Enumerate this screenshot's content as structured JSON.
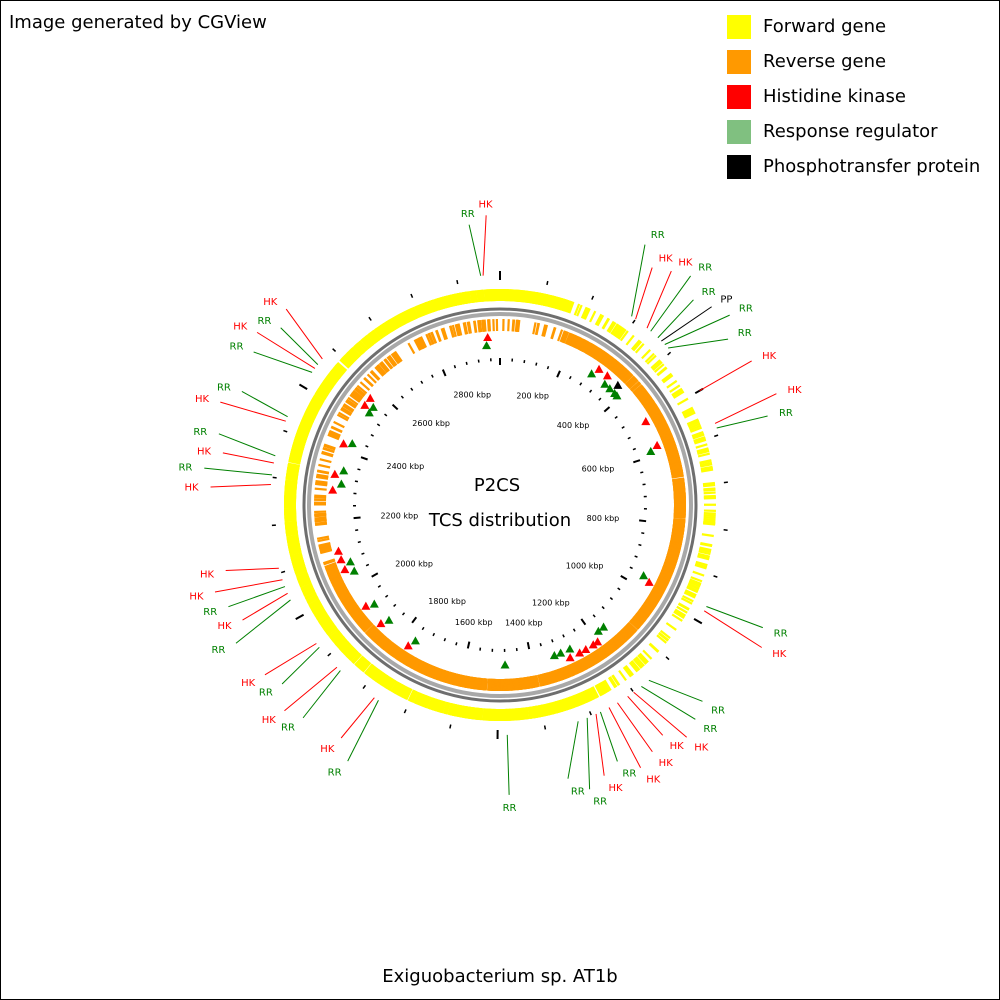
{
  "header": {
    "text": "Image generated by CGView"
  },
  "footer": {
    "organism": "Exiguobacterium sp. AT1b"
  },
  "center": {
    "title": "P2CS",
    "subtitle": "TCS distribution"
  },
  "legend": [
    {
      "label": "Forward gene",
      "color": "#ffff00"
    },
    {
      "label": "Reverse gene",
      "color": "#ff9900"
    },
    {
      "label": "Histidine kinase",
      "color": "#ff0000"
    },
    {
      "label": "Response regulator",
      "color": "#80c080"
    },
    {
      "label": "Phosphotransfer protein",
      "color": "#000000"
    }
  ],
  "colors": {
    "hk": "#ff0000",
    "rr": "#008000",
    "pp": "#000000",
    "backbone": "#808080"
  },
  "genome": {
    "length_kbp": 2990
  },
  "tick_labels": [
    {
      "kbp": 200,
      "text": "200 kbp"
    },
    {
      "kbp": 400,
      "text": "400 kbp"
    },
    {
      "kbp": 600,
      "text": "600 kbp"
    },
    {
      "kbp": 800,
      "text": "800 kbp"
    },
    {
      "kbp": 1000,
      "text": "1000 kbp"
    },
    {
      "kbp": 1200,
      "text": "1200 kbp"
    },
    {
      "kbp": 1400,
      "text": "1400 kbp"
    },
    {
      "kbp": 1600,
      "text": "1600 kbp"
    },
    {
      "kbp": 1800,
      "text": "1800 kbp"
    },
    {
      "kbp": 2000,
      "text": "2000 kbp"
    },
    {
      "kbp": 2200,
      "text": "2200 kbp"
    },
    {
      "kbp": 2400,
      "text": "2400 kbp"
    },
    {
      "kbp": 2600,
      "text": "2600 kbp"
    },
    {
      "kbp": 2800,
      "text": "2800 kbp"
    }
  ],
  "features": [
    {
      "label": "RR",
      "type": "rr",
      "kbp": 2950
    },
    {
      "label": "HK",
      "type": "hk",
      "kbp": 2955
    },
    {
      "label": "RR",
      "type": "rr",
      "kbp": 290
    },
    {
      "label": "HK",
      "type": "hk",
      "kbp": 300
    },
    {
      "label": "HK",
      "type": "hk",
      "kbp": 330
    },
    {
      "label": "RR",
      "type": "rr",
      "kbp": 340
    },
    {
      "label": "RR",
      "type": "rr",
      "kbp": 360
    },
    {
      "label": "PP",
      "type": "pp",
      "kbp": 370
    },
    {
      "label": "RR",
      "type": "rr",
      "kbp": 380
    },
    {
      "label": "RR",
      "type": "rr",
      "kbp": 390
    },
    {
      "label": "HK",
      "type": "hk",
      "kbp": 500
    },
    {
      "label": "HK",
      "type": "hk",
      "kbp": 575
    },
    {
      "label": "RR",
      "type": "rr",
      "kbp": 585
    },
    {
      "label": "RR",
      "type": "rr",
      "kbp": 965
    },
    {
      "label": "HK",
      "type": "hk",
      "kbp": 975
    },
    {
      "label": "RR",
      "type": "rr",
      "kbp": 1160
    },
    {
      "label": "RR",
      "type": "rr",
      "kbp": 1180
    },
    {
      "label": "HK",
      "type": "hk",
      "kbp": 1200
    },
    {
      "label": "HK",
      "type": "hk",
      "kbp": 1215
    },
    {
      "label": "HK",
      "type": "hk",
      "kbp": 1240
    },
    {
      "label": "HK",
      "type": "hk",
      "kbp": 1260
    },
    {
      "label": "RR",
      "type": "rr",
      "kbp": 1280
    },
    {
      "label": "HK",
      "type": "hk",
      "kbp": 1290
    },
    {
      "label": "RR",
      "type": "rr",
      "kbp": 1310
    },
    {
      "label": "RR",
      "type": "rr",
      "kbp": 1330
    },
    {
      "label": "RR",
      "type": "rr",
      "kbp": 1480
    },
    {
      "label": "RR",
      "type": "rr",
      "kbp": 1760
    },
    {
      "label": "HK",
      "type": "hk",
      "kbp": 1770
    },
    {
      "label": "RR",
      "type": "rr",
      "kbp": 1860
    },
    {
      "label": "HK",
      "type": "hk",
      "kbp": 1870
    },
    {
      "label": "RR",
      "type": "rr",
      "kbp": 1925
    },
    {
      "label": "HK",
      "type": "hk",
      "kbp": 1935
    },
    {
      "label": "RR",
      "type": "rr",
      "kbp": 2040
    },
    {
      "label": "HK",
      "type": "hk",
      "kbp": 2055
    },
    {
      "label": "RR",
      "type": "rr",
      "kbp": 2070
    },
    {
      "label": "HK",
      "type": "hk",
      "kbp": 2085
    },
    {
      "label": "HK",
      "type": "hk",
      "kbp": 2110
    },
    {
      "label": "HK",
      "type": "hk",
      "kbp": 2285
    },
    {
      "label": "RR",
      "type": "rr",
      "kbp": 2305
    },
    {
      "label": "HK",
      "type": "hk",
      "kbp": 2330
    },
    {
      "label": "RR",
      "type": "rr",
      "kbp": 2345
    },
    {
      "label": "HK",
      "type": "hk",
      "kbp": 2420
    },
    {
      "label": "RR",
      "type": "rr",
      "kbp": 2430
    },
    {
      "label": "RR",
      "type": "rr",
      "kbp": 2535
    },
    {
      "label": "HK",
      "type": "hk",
      "kbp": 2545
    },
    {
      "label": "RR",
      "type": "rr",
      "kbp": 2555
    },
    {
      "label": "HK",
      "type": "hk",
      "kbp": 2570
    }
  ]
}
